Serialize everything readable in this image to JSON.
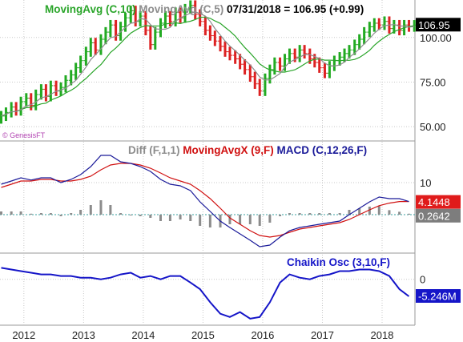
{
  "chart_data": [
    {
      "type": "bar",
      "subtype": "ohlc",
      "title": "",
      "legend": [
        {
          "text": "MovingAvg (C,10)",
          "color": "#2aa52a"
        },
        {
          "text": "MovingAvg (C,5)",
          "color": "#8c8c8c"
        },
        {
          "text": "07/31/2018 = 106.95 (+0.99)",
          "color": "#000000"
        }
      ],
      "watermark": "© GenesisFT",
      "y_ticks": [
        "100.00",
        "75.00",
        "50.00"
      ],
      "y_tick_values": [
        100,
        75,
        50
      ],
      "last_value_label": "106.95",
      "ylim": [
        42,
        121
      ],
      "x_range": [
        2011.6,
        2018.55
      ],
      "bars": {
        "x": [
          2011.62,
          2011.7,
          2011.79,
          2011.87,
          2011.95,
          2012.04,
          2012.12,
          2012.2,
          2012.29,
          2012.37,
          2012.45,
          2012.54,
          2012.62,
          2012.7,
          2012.79,
          2012.87,
          2012.95,
          2013.04,
          2013.12,
          2013.2,
          2013.29,
          2013.37,
          2013.45,
          2013.54,
          2013.62,
          2013.7,
          2013.79,
          2013.87,
          2013.95,
          2014.04,
          2014.12,
          2014.2,
          2014.29,
          2014.37,
          2014.45,
          2014.54,
          2014.62,
          2014.7,
          2014.79,
          2014.87,
          2014.95,
          2015.04,
          2015.12,
          2015.2,
          2015.29,
          2015.37,
          2015.45,
          2015.54,
          2015.62,
          2015.7,
          2015.79,
          2015.87,
          2015.95,
          2016.04,
          2016.12,
          2016.2,
          2016.29,
          2016.37,
          2016.45,
          2016.54,
          2016.62,
          2016.7,
          2016.79,
          2016.87,
          2016.95,
          2017.04,
          2017.12,
          2017.2,
          2017.29,
          2017.37,
          2017.45,
          2017.54,
          2017.62,
          2017.7,
          2017.79,
          2017.87,
          2017.95,
          2018.04,
          2018.12,
          2018.2,
          2018.29,
          2018.37,
          2018.45,
          2018.54
        ],
        "close": [
          56,
          58,
          61,
          59,
          64,
          66,
          62,
          68,
          71,
          67,
          73,
          70,
          72,
          76,
          79,
          83,
          87,
          92,
          97,
          93,
          99,
          103,
          107,
          101,
          106,
          111,
          115,
          109,
          112,
          104,
          96,
          103,
          108,
          112,
          109,
          114,
          111,
          116,
          118,
          113,
          109,
          104,
          101,
          98,
          95,
          92,
          90,
          88,
          85,
          82,
          78,
          74,
          70,
          77,
          82,
          86,
          84,
          88,
          91,
          89,
          93,
          91,
          88,
          86,
          83,
          80,
          84,
          87,
          89,
          91,
          93,
          96,
          99,
          103,
          106,
          108,
          107,
          109,
          105,
          107,
          104,
          107,
          106,
          106.95
        ]
      },
      "overlays": [
        {
          "name": "MovingAvg (C,10)",
          "color": "#2aa52a",
          "period": 10
        },
        {
          "name": "MovingAvg (C,5)",
          "color": "#8c8c8c",
          "period": 5
        }
      ]
    },
    {
      "type": "line",
      "legend": [
        {
          "text": "Diff (F,1,1)",
          "color": "#8c8c8c"
        },
        {
          "text": "MovingAvgX (9,F)",
          "color": "#d01010"
        },
        {
          "text": "MACD (C,12,26,F)",
          "color": "#1a1a99"
        }
      ],
      "y_ticks": [
        "10"
      ],
      "y_tick_values": [
        10
      ],
      "zero_line": 0,
      "ylim": [
        -12,
        23
      ],
      "value_labels": [
        {
          "text": "4.1448",
          "bg": "#e01b1b"
        },
        {
          "text": "0.2642",
          "bg": "#7d7d7d"
        }
      ],
      "x": [
        2011.62,
        2011.79,
        2011.95,
        2012.12,
        2012.29,
        2012.45,
        2012.62,
        2012.79,
        2012.95,
        2013.12,
        2013.29,
        2013.45,
        2013.62,
        2013.79,
        2013.95,
        2014.12,
        2014.29,
        2014.45,
        2014.62,
        2014.79,
        2014.95,
        2015.12,
        2015.29,
        2015.45,
        2015.62,
        2015.79,
        2015.95,
        2016.12,
        2016.29,
        2016.45,
        2016.62,
        2016.79,
        2016.95,
        2017.12,
        2017.29,
        2017.45,
        2017.62,
        2017.79,
        2017.95,
        2018.12,
        2018.29,
        2018.45
      ],
      "series": [
        {
          "name": "MACD (C,12,26,F)",
          "color": "#1a1a99",
          "values": [
            9.5,
            10.5,
            11.5,
            10.8,
            11.5,
            11.5,
            10.0,
            11.0,
            12.5,
            15.0,
            18.5,
            18.5,
            16.5,
            16.0,
            15.0,
            13.5,
            11.0,
            9.5,
            9.0,
            7.5,
            4.0,
            1.0,
            -2.0,
            -4.0,
            -6.0,
            -8.0,
            -10.0,
            -9.5,
            -7.0,
            -5.0,
            -4.0,
            -3.5,
            -3.0,
            -2.5,
            -2.0,
            0.0,
            2.0,
            4.0,
            5.5,
            5.0,
            5.0,
            4.1
          ]
        },
        {
          "name": "MovingAvgX (9,F)",
          "color": "#d01010",
          "values": [
            8.5,
            9.5,
            10.5,
            10.5,
            11.0,
            11.0,
            10.5,
            10.5,
            11.0,
            12.0,
            14.0,
            15.5,
            16.0,
            16.0,
            15.5,
            14.5,
            13.0,
            11.5,
            10.5,
            9.5,
            7.5,
            5.0,
            2.0,
            -1.0,
            -3.0,
            -5.0,
            -6.5,
            -7.0,
            -6.5,
            -5.5,
            -4.5,
            -4.0,
            -3.5,
            -3.0,
            -2.5,
            -1.5,
            0.0,
            1.5,
            2.8,
            3.6,
            4.1,
            4.1
          ]
        },
        {
          "name": "Diff (F,1,1)",
          "color": "#8c8c8c",
          "values": [
            1.0,
            1.0,
            1.0,
            0.3,
            0.5,
            0.5,
            -0.5,
            0.5,
            1.5,
            3.0,
            4.5,
            3.0,
            0.5,
            0.0,
            -0.5,
            -1.0,
            -2.0,
            -2.0,
            -1.5,
            -2.0,
            -3.5,
            -4.0,
            -4.0,
            -3.0,
            -3.0,
            -3.0,
            -3.5,
            -2.5,
            -0.5,
            0.5,
            0.5,
            0.5,
            0.5,
            0.5,
            0.5,
            1.5,
            2.0,
            2.5,
            2.7,
            1.4,
            0.9,
            0.3
          ]
        }
      ]
    },
    {
      "type": "line",
      "legend": [
        {
          "text": "Chaikin Osc (3,10,F)",
          "color": "#1515c8"
        }
      ],
      "y_ticks": [
        "0"
      ],
      "y_tick_values": [
        0
      ],
      "zero_line": 0,
      "ylim": [
        -14,
        8
      ],
      "value_labels": [
        {
          "text": "-5.246M",
          "bg": "#1515c8"
        }
      ],
      "x_ticks": [
        "2012",
        "2013",
        "2014",
        "2015",
        "2016",
        "2017",
        "2018"
      ],
      "x_tick_values": [
        2012,
        2013,
        2014,
        2015,
        2016,
        2017,
        2018
      ],
      "x": [
        2011.62,
        2011.79,
        2011.95,
        2012.12,
        2012.29,
        2012.45,
        2012.62,
        2012.79,
        2012.95,
        2013.12,
        2013.29,
        2013.45,
        2013.62,
        2013.79,
        2013.95,
        2014.12,
        2014.29,
        2014.45,
        2014.62,
        2014.79,
        2014.95,
        2015.12,
        2015.29,
        2015.45,
        2015.62,
        2015.79,
        2015.95,
        2016.12,
        2016.29,
        2016.45,
        2016.62,
        2016.79,
        2016.95,
        2017.12,
        2017.29,
        2017.45,
        2017.62,
        2017.79,
        2017.95,
        2018.12,
        2018.29,
        2018.45
      ],
      "series": [
        {
          "name": "Chaikin Osc (3,10,F)",
          "color": "#1515c8",
          "values": [
            3.5,
            3.0,
            2.5,
            2.0,
            1.5,
            1.5,
            1.0,
            1.0,
            0.5,
            0.5,
            0.0,
            0.5,
            1.5,
            2.0,
            0.5,
            1.0,
            0.0,
            1.0,
            1.0,
            -1.0,
            -3.0,
            -7.0,
            -10.5,
            -11.5,
            -10.0,
            -12.0,
            -11.5,
            -7.0,
            -1.0,
            1.5,
            0.5,
            0.0,
            1.0,
            1.5,
            2.5,
            2.5,
            3.0,
            3.0,
            2.5,
            1.0,
            -3.0,
            -5.2
          ]
        }
      ]
    }
  ]
}
